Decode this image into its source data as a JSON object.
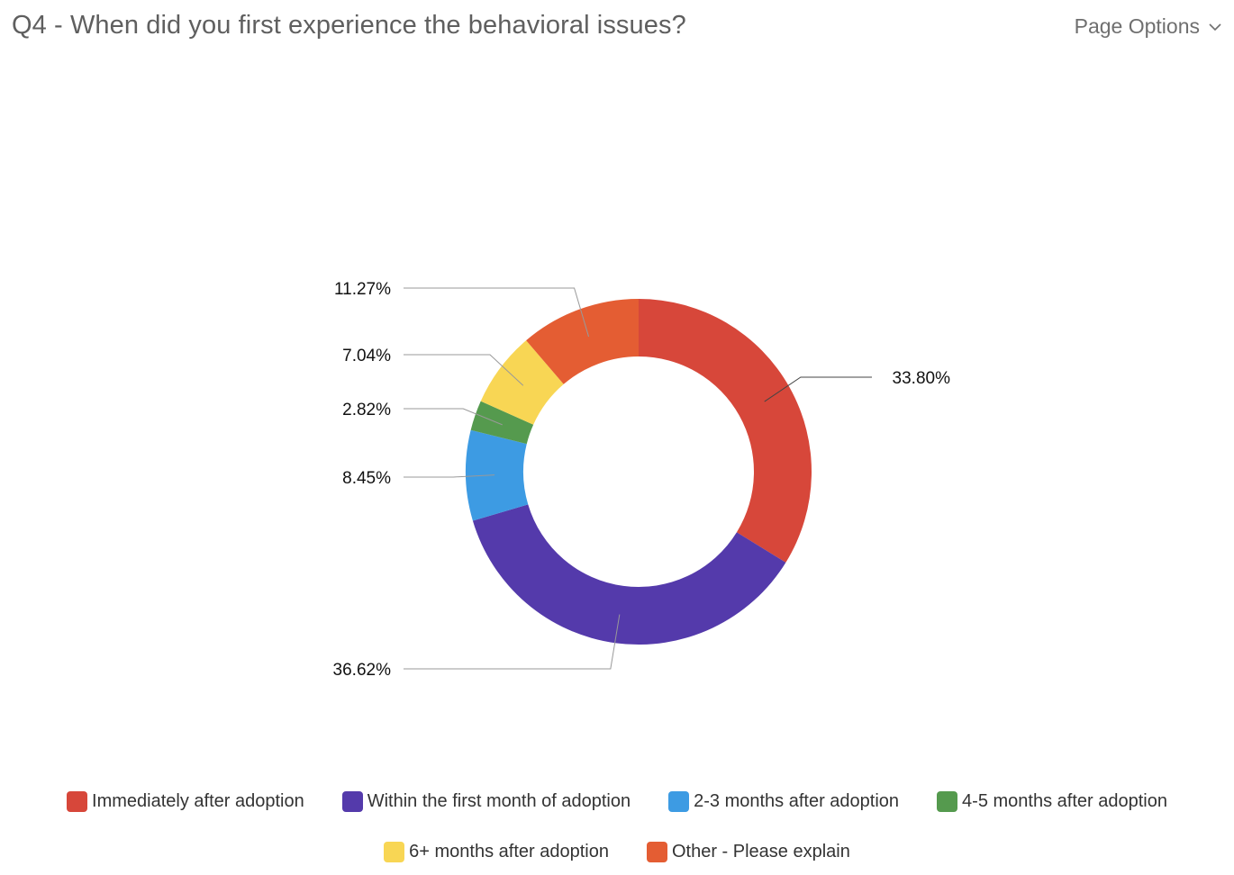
{
  "header": {
    "title": "Q4 - When did you first experience the behavioral issues?",
    "page_options_label": "Page Options",
    "page_options_icon": "chevron-down-icon"
  },
  "chart_data": {
    "type": "pie",
    "variant": "donut",
    "title": "Q4 - When did you first experience the behavioral issues?",
    "legend_placement": "bottom",
    "slices": [
      {
        "label": "Immediately after adoption",
        "value": 33.8,
        "value_label": "33.80%",
        "color": "#d7473a"
      },
      {
        "label": "Within the first month of adoption",
        "value": 36.62,
        "value_label": "36.62%",
        "color": "#543aab"
      },
      {
        "label": "2-3 months after adoption",
        "value": 8.45,
        "value_label": "8.45%",
        "color": "#3d9be3"
      },
      {
        "label": "4-5 months after adoption",
        "value": 2.82,
        "value_label": "2.82%",
        "color": "#559a4e"
      },
      {
        "label": "6+ months after adoption",
        "value": 7.04,
        "value_label": "7.04%",
        "color": "#f8d654"
      },
      {
        "label": "Other - Please explain",
        "value": 11.27,
        "value_label": "11.27%",
        "color": "#e45d33"
      }
    ]
  }
}
